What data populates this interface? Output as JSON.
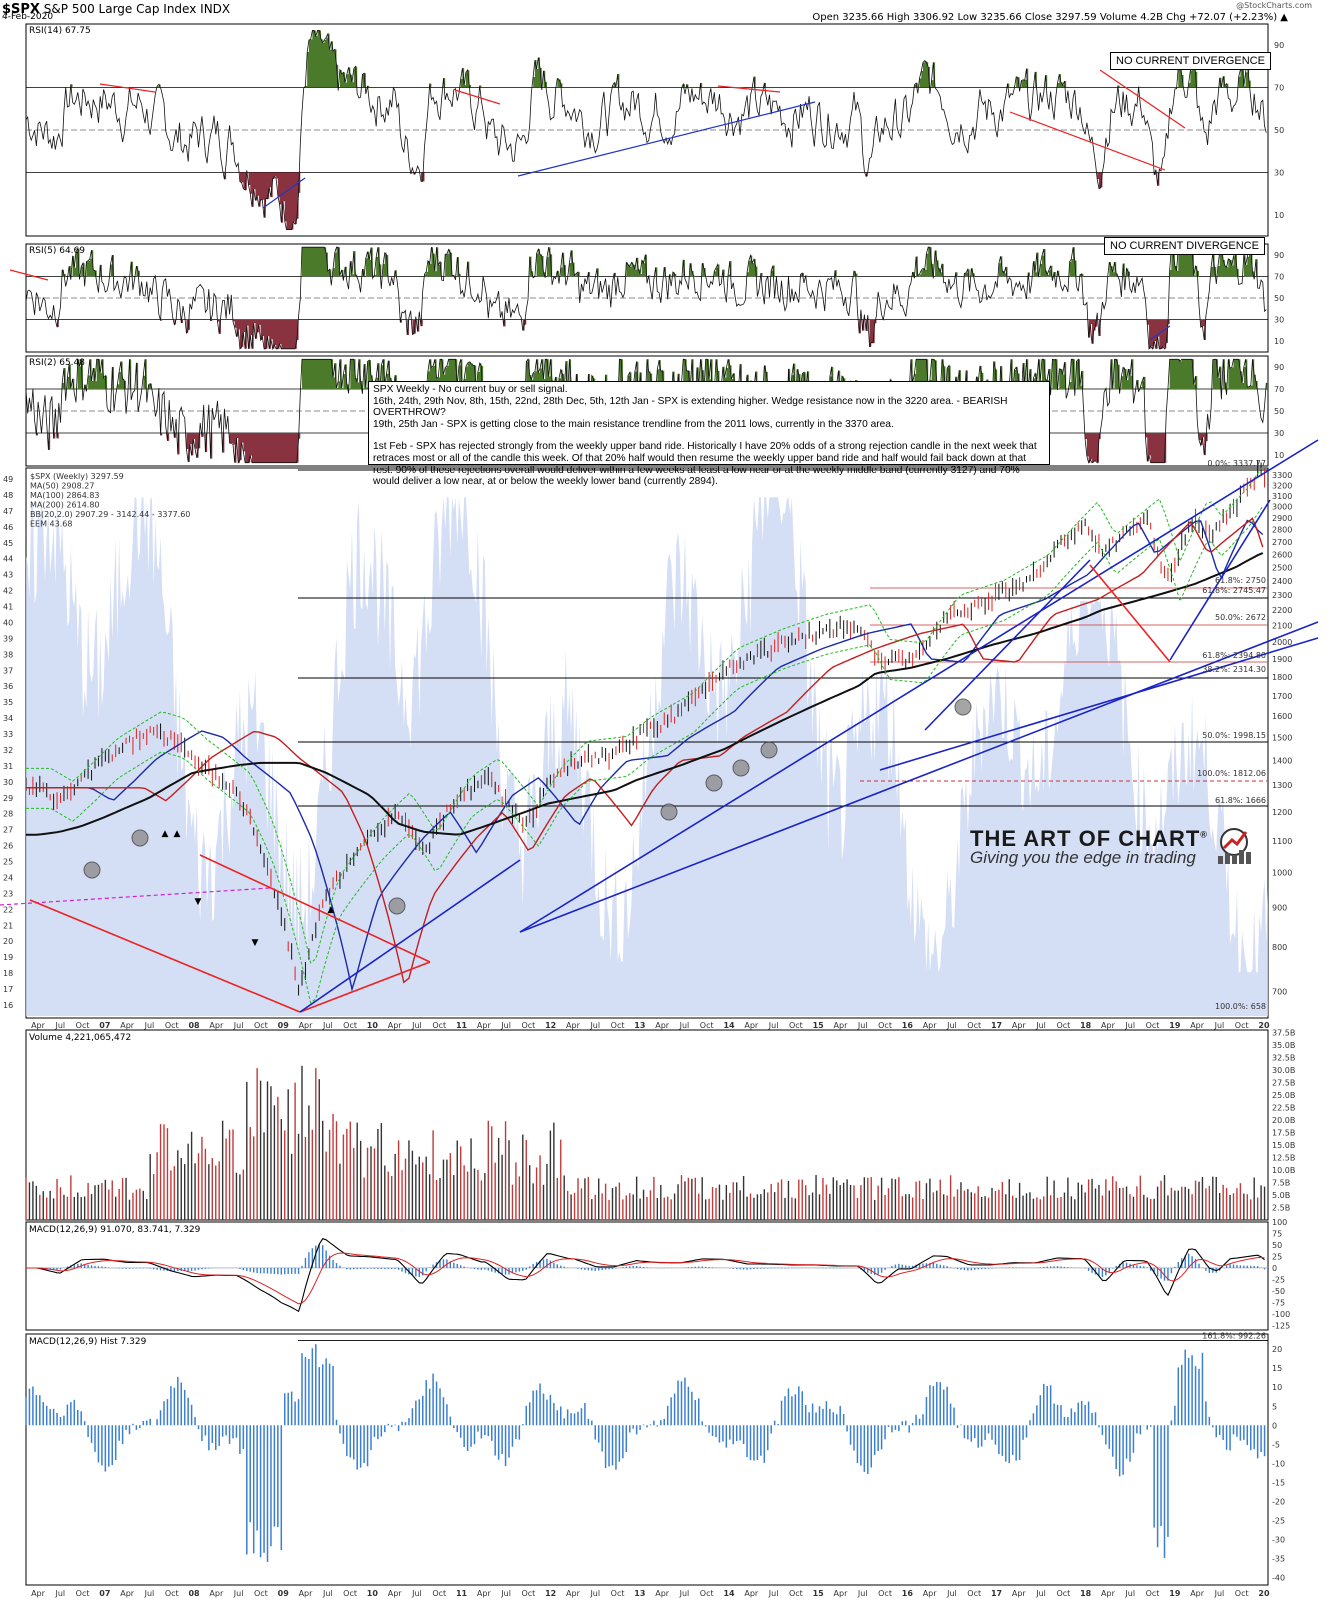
{
  "header": {
    "symbol": "$SPX",
    "name": "S&P 500 Large Cap Index",
    "exchange": "INDX",
    "date": "4-Feb-2020",
    "quote": "Open 3235.66  High 3306.92  Low 3235.66  Close 3297.59  Volume 4.2B  Chg +72.07 (+2.23%) ▲",
    "credit": "@StockCharts.com"
  },
  "panels": {
    "rsi14": {
      "label": "RSI(14) 67.75",
      "divergence": "NO CURRENT DIVERGENCE",
      "ticks": [
        "90",
        "70",
        "50",
        "30",
        "10"
      ]
    },
    "rsi5": {
      "label": "RSI(5) 64.69",
      "divergence": "NO CURRENT DIVERGENCE",
      "ticks": [
        "90",
        "70",
        "50",
        "30",
        "10"
      ]
    },
    "rsi2": {
      "label": "RSI(2) 65.48",
      "ticks": [
        "90",
        "70",
        "50",
        "30",
        "10"
      ]
    },
    "price": {
      "legend": [
        "$SPX (Weekly) 3297.59",
        "MA(50) 2908.27",
        "MA(100) 2864.83",
        "MA(200) 2614.80",
        "BB(20,2.0) 2907.29 - 3142.44 - 3377.60",
        "EEM 43.68"
      ],
      "right_ticks": [
        "3300",
        "3200",
        "3100",
        "3000",
        "2900",
        "2800",
        "2700",
        "2600",
        "2500",
        "2400",
        "2300",
        "2200",
        "2100",
        "2000",
        "1900",
        "1800",
        "1700",
        "1600",
        "1500",
        "1400",
        "1300",
        "1200",
        "1100",
        "1000",
        "900",
        "800",
        "700"
      ],
      "left_ticks": [
        "49",
        "48",
        "47",
        "46",
        "45",
        "44",
        "43",
        "42",
        "41",
        "40",
        "39",
        "38",
        "37",
        "36",
        "35",
        "34",
        "33",
        "32",
        "31",
        "30",
        "29",
        "28",
        "27",
        "26",
        "25",
        "24",
        "23",
        "22",
        "21",
        "20",
        "19",
        "18",
        "17",
        "16"
      ],
      "fib_labels": [
        "0.0%: 3337.77",
        "61.8%: 2750",
        "61.8%: 2745.47",
        "50.0%: 2672",
        "61.8%: 2394.80",
        "38.2%: 2314.30",
        "50.0%: 1998.15",
        "100.0%: 1812.06",
        "61.8%: 1666",
        "100.0%: 658"
      ]
    },
    "volume": {
      "label": "Volume 4,221,065,472",
      "ticks": [
        "37.5B",
        "35.0B",
        "32.5B",
        "30.0B",
        "27.5B",
        "25.0B",
        "22.5B",
        "20.0B",
        "17.5B",
        "15.0B",
        "12.5B",
        "10.0B",
        "7.5B",
        "5.0B",
        "2.5B"
      ]
    },
    "macd": {
      "label": "MACD(12,26,9) 91.070, 83.741, 7.329",
      "ticks": [
        "100",
        "75",
        "50",
        "25",
        "0",
        "-25",
        "-50",
        "-75",
        "-100",
        "-125"
      ]
    },
    "hist": {
      "label": "MACD(12,26,9) Hist 7.329",
      "fib": "161.8%: 992.26",
      "ticks": [
        "20",
        "15",
        "10",
        "5",
        "0",
        "-5",
        "-10",
        "-15",
        "-20",
        "-25",
        "-30",
        "-35",
        "-40"
      ]
    }
  },
  "x_axis": [
    "Apr",
    "Jul",
    "Oct",
    "07",
    "Apr",
    "Jul",
    "Oct",
    "08",
    "Apr",
    "Jul",
    "Oct",
    "09",
    "Apr",
    "Jul",
    "Oct",
    "10",
    "Apr",
    "Jul",
    "Oct",
    "11",
    "Apr",
    "Jul",
    "Oct",
    "12",
    "Apr",
    "Jul",
    "Oct",
    "13",
    "Apr",
    "Jul",
    "Oct",
    "14",
    "Apr",
    "Jul",
    "Oct",
    "15",
    "Apr",
    "Jul",
    "Oct",
    "16",
    "Apr",
    "Jul",
    "Oct",
    "17",
    "Apr",
    "Jul",
    "Oct",
    "18",
    "Apr",
    "Jul",
    "Oct",
    "19",
    "Apr",
    "Jul",
    "Oct",
    "20"
  ],
  "note": {
    "line1": "SPX Weekly - No current buy or sell signal.",
    "line2": "16th, 24th, 29th Nov, 8th, 15th, 22nd, 28th Dec, 5th, 12th Jan - SPX is extending higher. Wedge resistance now in the 3220 area. - BEARISH OVERTHROW?",
    "line3": "19th, 25th Jan - SPX is getting close to the main resistance trendline from the 2011 lows, currently in the 3370 area.",
    "line4": "1st Feb - SPX has rejected strongly from the weekly upper band ride. Historically I have 20% odds of a strong rejection candle in the next week that retraces most or all of the candle this week. Of that 20% half would then resume the weekly upper band ride and half would fail back down at that rest. 90% of these rejections overall would deliver within a few weeks at least a low near or at the weekly middle band (currently 3127) and 70% would deliver a low near, at or below the weekly lower band (currently 2894)."
  },
  "brand": {
    "name": "THE ART OF CHART",
    "mark": "®",
    "tagline": "Giving you the edge in trading"
  },
  "chart_data": {
    "type": "line",
    "title": "$SPX S&P 500 Large Cap Index INDX",
    "x": [
      "2006.25",
      "2006.5",
      "2006.75",
      "2007",
      "2007.5",
      "2007.75",
      "2008",
      "2008.5",
      "2008.75",
      "2009.2",
      "2009.5",
      "2010",
      "2010.3",
      "2010.6",
      "2011",
      "2011.3",
      "2011.75",
      "2012",
      "2012.3",
      "2012.75",
      "2013",
      "2013.5",
      "2014",
      "2014.5",
      "2015",
      "2015.5",
      "2015.7",
      "2016.1",
      "2016.5",
      "2017",
      "2017.5",
      "2018.05",
      "2018.25",
      "2018.75",
      "2018.98",
      "2019.3",
      "2019.45",
      "2019.75",
      "2020.02",
      "2020.08"
    ],
    "series": [
      {
        "name": "$SPX (Weekly)",
        "values": [
          1290,
          1240,
          1320,
          1410,
          1530,
          1500,
          1410,
          1270,
          1100,
          700,
          930,
          1110,
          1200,
          1060,
          1260,
          1330,
          1150,
          1290,
          1400,
          1420,
          1500,
          1620,
          1850,
          1960,
          2050,
          2110,
          1900,
          1880,
          2170,
          2270,
          2450,
          2870,
          2600,
          2900,
          2400,
          2900,
          2750,
          3000,
          3330,
          3297
        ]
      },
      {
        "name": "MA(200)",
        "values": [
          1120,
          1130,
          1150,
          1180,
          1250,
          1300,
          1350,
          1380,
          1390,
          1390,
          1350,
          1260,
          1160,
          1130,
          1120,
          1150,
          1200,
          1230,
          1250,
          1280,
          1320,
          1380,
          1450,
          1550,
          1650,
          1750,
          1820,
          1850,
          1900,
          1980,
          2050,
          2150,
          2200,
          2280,
          2320,
          2380,
          2420,
          2500,
          2600,
          2614.8
        ]
      }
    ],
    "ylim": [
      650,
      3350
    ],
    "ylabel": "",
    "xlabel": ""
  }
}
